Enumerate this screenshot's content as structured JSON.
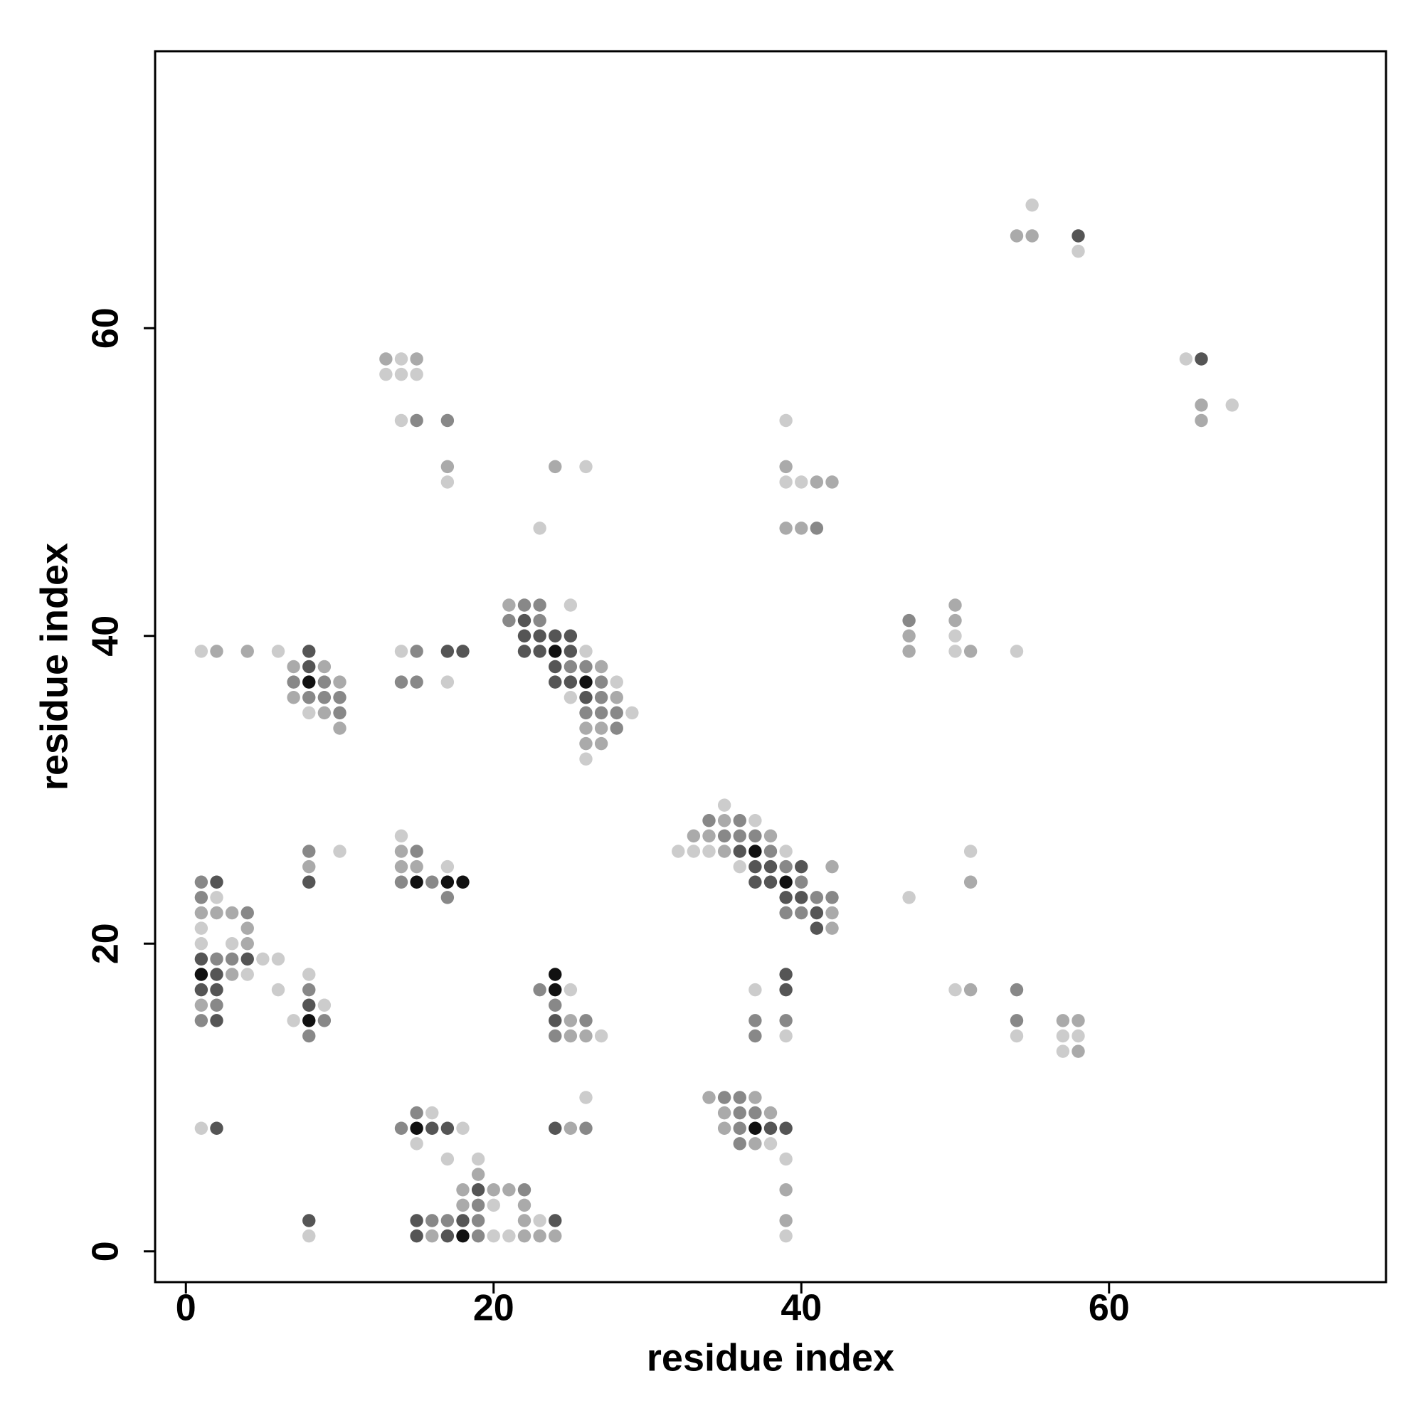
{
  "chart_data": {
    "type": "scatter",
    "xlabel": "residue index",
    "ylabel": "residue index",
    "xlim": [
      -2,
      78
    ],
    "ylim": [
      -2,
      78
    ],
    "xticks": [
      0,
      20,
      40,
      60
    ],
    "yticks": [
      0,
      20,
      40,
      60
    ],
    "shade_colors": [
      "#cccccc",
      "#aaaaaa",
      "#888888",
      "#555555",
      "#111111"
    ],
    "x": [
      8,
      15,
      16,
      17,
      18,
      19,
      20,
      21,
      22,
      23,
      24,
      39,
      8,
      15,
      16,
      17,
      18,
      19,
      22,
      23,
      24,
      39,
      18,
      19,
      20,
      22,
      18,
      19,
      20,
      21,
      22,
      39,
      19,
      17,
      19,
      39,
      15,
      36,
      37,
      38,
      1,
      2,
      14,
      15,
      16,
      17,
      18,
      24,
      25,
      26,
      35,
      36,
      37,
      38,
      39,
      15,
      16,
      35,
      36,
      37,
      38,
      26,
      34,
      35,
      36,
      37,
      57,
      58,
      8,
      24,
      25,
      26,
      27,
      37,
      39,
      54,
      57,
      58,
      1,
      2,
      7,
      8,
      9,
      24,
      25,
      26,
      37,
      39,
      54,
      57,
      58,
      1,
      2,
      8,
      9,
      24,
      1,
      2,
      6,
      8,
      23,
      24,
      25,
      37,
      39,
      50,
      51,
      54,
      1,
      2,
      3,
      4,
      8,
      24,
      39,
      1,
      2,
      3,
      4,
      5,
      6,
      1,
      3,
      4,
      1,
      4,
      41,
      42,
      1,
      2,
      3,
      4,
      39,
      40,
      41,
      42,
      1,
      2,
      17,
      39,
      40,
      41,
      42,
      47,
      1,
      2,
      8,
      14,
      15,
      16,
      17,
      18,
      37,
      38,
      39,
      40,
      51,
      8,
      14,
      15,
      17,
      36,
      37,
      38,
      39,
      40,
      42,
      8,
      10,
      14,
      15,
      32,
      33,
      34,
      35,
      36,
      37,
      38,
      39,
      51,
      14,
      33,
      34,
      35,
      36,
      37,
      38,
      34,
      35,
      36,
      37,
      35,
      26,
      26,
      27,
      10,
      26,
      27,
      28,
      8,
      9,
      10,
      26,
      27,
      28,
      29,
      7,
      8,
      9,
      10,
      25,
      26,
      27,
      28,
      7,
      8,
      9,
      10,
      14,
      15,
      17,
      24,
      25,
      26,
      27,
      28,
      7,
      8,
      9,
      24,
      25,
      26,
      27,
      1,
      2,
      4,
      6,
      8,
      14,
      15,
      17,
      18,
      22,
      23,
      24,
      25,
      26,
      47,
      50,
      51,
      54,
      22,
      23,
      24,
      25,
      47,
      50,
      21,
      22,
      23,
      47,
      50,
      21,
      22,
      23,
      25,
      50,
      23,
      39,
      40,
      41,
      17,
      39,
      40,
      41,
      42,
      17,
      24,
      26,
      39,
      14,
      15,
      17,
      39,
      66,
      66,
      68,
      13,
      14,
      15,
      13,
      14,
      15,
      65,
      66,
      58,
      54,
      55,
      58,
      55
    ],
    "y": [
      1,
      1,
      1,
      1,
      1,
      1,
      1,
      1,
      1,
      1,
      1,
      1,
      2,
      2,
      2,
      2,
      2,
      2,
      2,
      2,
      2,
      2,
      3,
      3,
      3,
      3,
      4,
      4,
      4,
      4,
      4,
      4,
      5,
      6,
      6,
      6,
      7,
      7,
      7,
      7,
      8,
      8,
      8,
      8,
      8,
      8,
      8,
      8,
      8,
      8,
      8,
      8,
      8,
      8,
      8,
      9,
      9,
      9,
      9,
      9,
      9,
      10,
      10,
      10,
      10,
      10,
      13,
      13,
      14,
      14,
      14,
      14,
      14,
      14,
      14,
      14,
      14,
      14,
      15,
      15,
      15,
      15,
      15,
      15,
      15,
      15,
      15,
      15,
      15,
      15,
      15,
      16,
      16,
      16,
      16,
      16,
      17,
      17,
      17,
      17,
      17,
      17,
      17,
      17,
      17,
      17,
      17,
      17,
      18,
      18,
      18,
      18,
      18,
      18,
      18,
      19,
      19,
      19,
      19,
      19,
      19,
      20,
      20,
      20,
      21,
      21,
      21,
      21,
      22,
      22,
      22,
      22,
      22,
      22,
      22,
      22,
      23,
      23,
      23,
      23,
      23,
      23,
      23,
      23,
      24,
      24,
      24,
      24,
      24,
      24,
      24,
      24,
      24,
      24,
      24,
      24,
      24,
      25,
      25,
      25,
      25,
      25,
      25,
      25,
      25,
      25,
      25,
      26,
      26,
      26,
      26,
      26,
      26,
      26,
      26,
      26,
      26,
      26,
      26,
      26,
      27,
      27,
      27,
      27,
      27,
      27,
      27,
      28,
      28,
      28,
      28,
      29,
      32,
      33,
      33,
      34,
      34,
      34,
      34,
      35,
      35,
      35,
      35,
      35,
      35,
      35,
      36,
      36,
      36,
      36,
      36,
      36,
      36,
      36,
      37,
      37,
      37,
      37,
      37,
      37,
      37,
      37,
      37,
      37,
      37,
      37,
      38,
      38,
      38,
      38,
      38,
      38,
      38,
      39,
      39,
      39,
      39,
      39,
      39,
      39,
      39,
      39,
      39,
      39,
      39,
      39,
      39,
      39,
      39,
      39,
      39,
      40,
      40,
      40,
      40,
      40,
      40,
      41,
      41,
      41,
      41,
      41,
      42,
      42,
      42,
      42,
      42,
      47,
      47,
      47,
      47,
      50,
      50,
      50,
      50,
      50,
      51,
      51,
      51,
      51,
      54,
      54,
      54,
      54,
      54,
      55,
      55,
      57,
      57,
      57,
      58,
      58,
      58,
      58,
      58,
      65,
      66,
      66,
      66,
      68
    ],
    "shade": [
      1,
      4,
      2,
      4,
      5,
      3,
      1,
      1,
      2,
      2,
      2,
      1,
      4,
      4,
      3,
      3,
      4,
      3,
      2,
      1,
      4,
      2,
      2,
      3,
      1,
      2,
      2,
      4,
      2,
      2,
      3,
      2,
      2,
      1,
      1,
      1,
      1,
      3,
      2,
      1,
      1,
      4,
      3,
      5,
      4,
      4,
      1,
      4,
      2,
      3,
      2,
      3,
      5,
      4,
      4,
      3,
      1,
      2,
      3,
      3,
      2,
      1,
      2,
      3,
      3,
      2,
      1,
      2,
      3,
      3,
      2,
      2,
      1,
      3,
      1,
      1,
      1,
      1,
      3,
      4,
      1,
      5,
      3,
      4,
      2,
      3,
      3,
      3,
      3,
      2,
      2,
      2,
      3,
      4,
      1,
      3,
      4,
      4,
      1,
      3,
      3,
      5,
      1,
      1,
      4,
      1,
      2,
      3,
      5,
      4,
      2,
      1,
      1,
      5,
      4,
      4,
      3,
      3,
      4,
      1,
      1,
      1,
      1,
      2,
      1,
      2,
      4,
      2,
      2,
      2,
      2,
      3,
      3,
      3,
      4,
      2,
      3,
      1,
      3,
      4,
      4,
      3,
      3,
      1,
      3,
      4,
      4,
      3,
      5,
      3,
      5,
      5,
      4,
      4,
      5,
      3,
      2,
      2,
      2,
      2,
      1,
      1,
      4,
      4,
      3,
      4,
      2,
      3,
      1,
      2,
      3,
      1,
      1,
      1,
      2,
      4,
      5,
      3,
      1,
      1,
      1,
      2,
      2,
      3,
      3,
      3,
      2,
      3,
      2,
      3,
      1,
      1,
      1,
      2,
      2,
      2,
      2,
      2,
      3,
      1,
      2,
      3,
      3,
      3,
      3,
      1,
      2,
      3,
      3,
      3,
      1,
      4,
      3,
      2,
      3,
      5,
      3,
      2,
      3,
      3,
      1,
      4,
      4,
      5,
      3,
      1,
      2,
      4,
      2,
      4,
      3,
      3,
      2,
      1,
      2,
      2,
      1,
      4,
      1,
      3,
      4,
      4,
      4,
      4,
      5,
      4,
      1,
      2,
      1,
      2,
      1,
      4,
      4,
      4,
      4,
      2,
      1,
      3,
      4,
      3,
      3,
      2,
      2,
      3,
      3,
      1,
      2,
      1,
      2,
      2,
      3,
      1,
      1,
      1,
      2,
      2,
      2,
      2,
      1,
      2,
      1,
      3,
      3,
      1,
      2,
      2,
      1,
      1,
      1,
      1,
      2,
      1,
      2,
      1,
      4,
      1,
      2,
      2,
      4,
      1
    ]
  }
}
